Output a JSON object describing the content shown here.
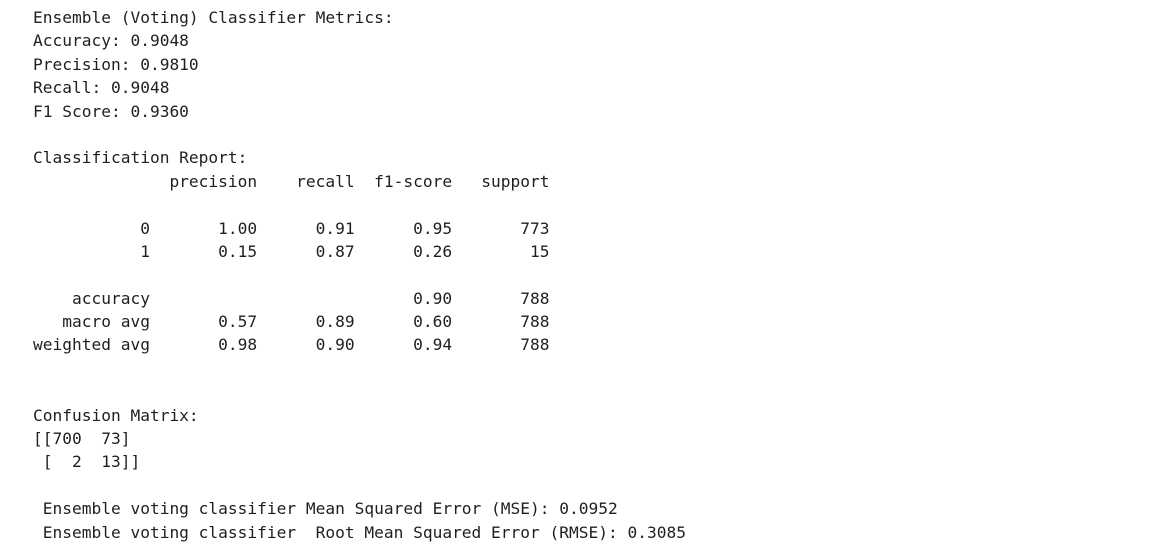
{
  "cell_output": {
    "lines": [
      "Ensemble (Voting) Classifier Metrics:",
      "Accuracy: 0.9048",
      "Precision: 0.9810",
      "Recall: 0.9048",
      "F1 Score: 0.9360",
      "",
      "Classification Report:",
      "              precision    recall  f1-score   support",
      "",
      "           0       1.00      0.91      0.95       773",
      "           1       0.15      0.87      0.26        15",
      "",
      "    accuracy                           0.90       788",
      "   macro avg       0.57      0.89      0.60       788",
      "weighted avg       0.98      0.90      0.94       788",
      "",
      "",
      "Confusion Matrix:",
      "[[700  73]",
      " [  2  13]]",
      "",
      " Ensemble voting classifier Mean Squared Error (MSE): 0.0952",
      " Ensemble voting classifier  Root Mean Squared Error (RMSE): 0.3085"
    ]
  }
}
